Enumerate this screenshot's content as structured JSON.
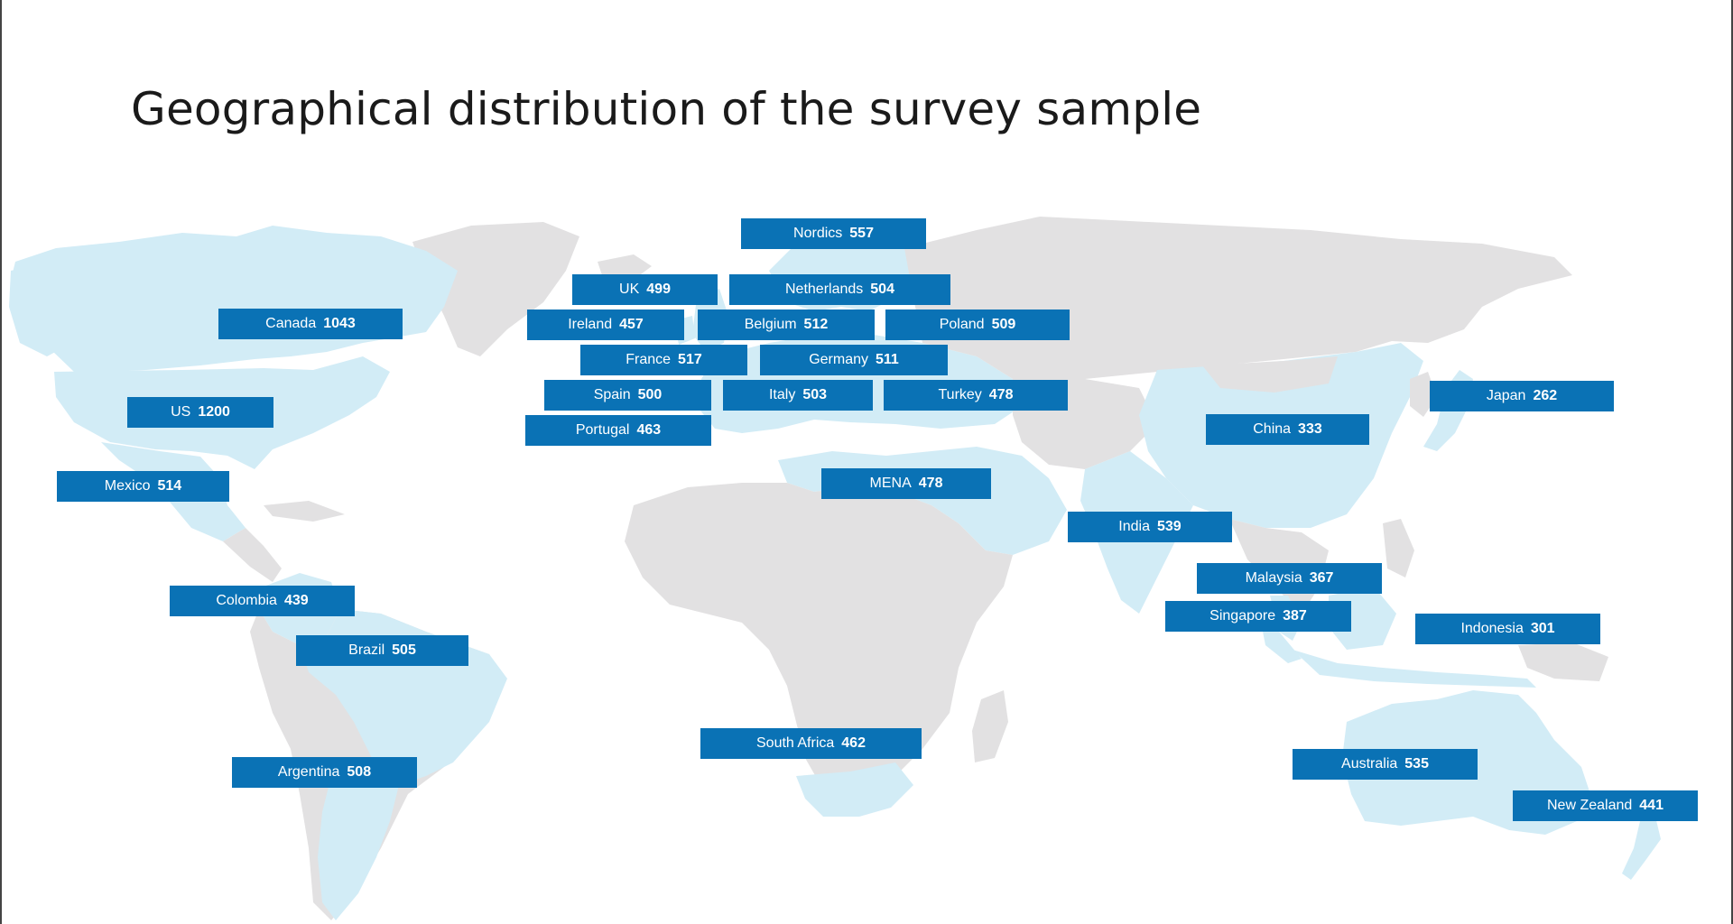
{
  "title": "Geographical distribution of the survey sample",
  "colors": {
    "label_background": "#0a72b5",
    "label_text": "#ffffff",
    "surveyed_region": "#d2ecf6",
    "other_land": "#e2e1e2"
  },
  "regions": [
    {
      "name": "Nordics",
      "count": "557"
    },
    {
      "name": "UK",
      "count": "499"
    },
    {
      "name": "Netherlands",
      "count": "504"
    },
    {
      "name": "Canada",
      "count": "1043"
    },
    {
      "name": "Ireland",
      "count": "457"
    },
    {
      "name": "Belgium",
      "count": "512"
    },
    {
      "name": "Poland",
      "count": "509"
    },
    {
      "name": "France",
      "count": "517"
    },
    {
      "name": "Germany",
      "count": "511"
    },
    {
      "name": "US",
      "count": "1200"
    },
    {
      "name": "Spain",
      "count": "500"
    },
    {
      "name": "Italy",
      "count": "503"
    },
    {
      "name": "Turkey",
      "count": "478"
    },
    {
      "name": "Japan",
      "count": "262"
    },
    {
      "name": "China",
      "count": "333"
    },
    {
      "name": "Portugal",
      "count": "463"
    },
    {
      "name": "Mexico",
      "count": "514"
    },
    {
      "name": "MENA",
      "count": "478"
    },
    {
      "name": "India",
      "count": "539"
    },
    {
      "name": "Malaysia",
      "count": "367"
    },
    {
      "name": "Colombia",
      "count": "439"
    },
    {
      "name": "Singapore",
      "count": "387"
    },
    {
      "name": "Indonesia",
      "count": "301"
    },
    {
      "name": "Brazil",
      "count": "505"
    },
    {
      "name": "South Africa",
      "count": "462"
    },
    {
      "name": "Argentina",
      "count": "508"
    },
    {
      "name": "Australia",
      "count": "535"
    },
    {
      "name": "New Zealand",
      "count": "441"
    }
  ]
}
